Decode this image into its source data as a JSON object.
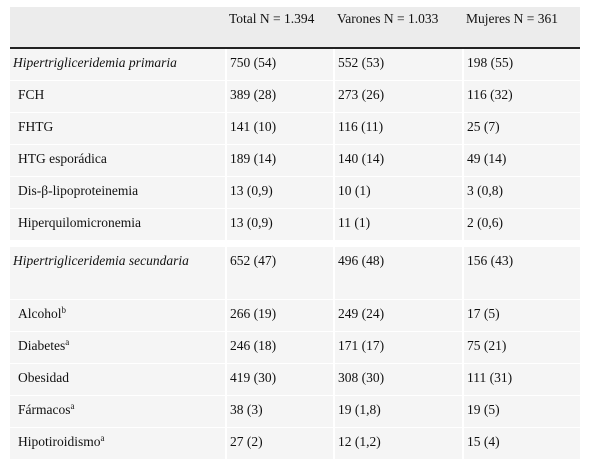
{
  "table": {
    "headers": [
      "",
      "Total N = 1.394",
      "Varones N = 1.033",
      "Mujeres N = 361"
    ],
    "groups": [
      {
        "title": "Hipertrigliceridemia primaria",
        "values": [
          "750 (54)",
          "552 (53)",
          "198 (55)"
        ],
        "rows": [
          {
            "label": "FCH",
            "sup": "",
            "values": [
              "389 (28)",
              "273 (26)",
              "116 (32)"
            ]
          },
          {
            "label": "FHTG",
            "sup": "",
            "values": [
              "141 (10)",
              "116 (11)",
              "25 (7)"
            ]
          },
          {
            "label": "HTG esporádica",
            "sup": "",
            "values": [
              "189 (14)",
              "140 (14)",
              "49 (14)"
            ]
          },
          {
            "label": "Dis-β-lipoproteinemia",
            "sup": "",
            "values": [
              "13 (0,9)",
              "10 (1)",
              "3 (0,8)"
            ]
          },
          {
            "label": "Hiperquilomicronemia",
            "sup": "",
            "values": [
              "13 (0,9)",
              "11 (1)",
              "2 (0,6)"
            ]
          }
        ]
      },
      {
        "title": "Hipertrigliceridemia secundaria",
        "values": [
          "652 (47)",
          "496 (48)",
          "156 (43)"
        ],
        "rows": [
          {
            "label": "Alcohol",
            "sup": "b",
            "values": [
              "266 (19)",
              "249 (24)",
              "17 (5)"
            ]
          },
          {
            "label": "Diabetes",
            "sup": "a",
            "values": [
              "246 (18)",
              "171 (17)",
              "75 (21)"
            ]
          },
          {
            "label": "Obesidad",
            "sup": "",
            "values": [
              "419 (30)",
              "308 (30)",
              "111 (31)"
            ]
          },
          {
            "label": "Fármacos",
            "sup": "a",
            "values": [
              "38 (3)",
              "19 (1,8)",
              "19 (5)"
            ]
          },
          {
            "label": "Hipotiroidismo",
            "sup": "a",
            "values": [
              "27 (2)",
              "12 (1,2)",
              "15 (4)"
            ]
          }
        ]
      }
    ]
  }
}
